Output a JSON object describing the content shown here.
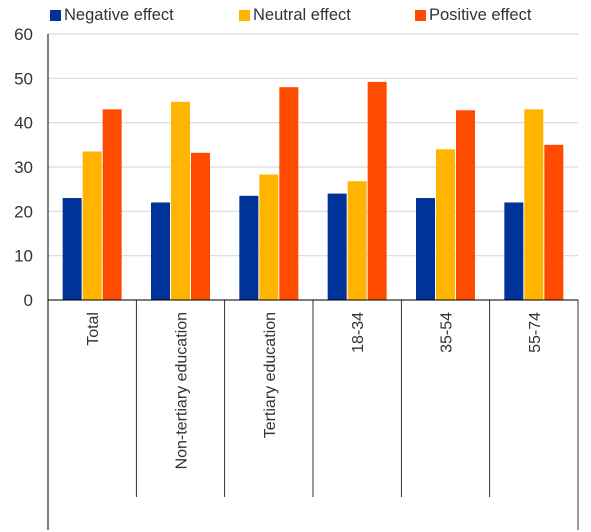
{
  "chart_data": {
    "type": "bar",
    "categories": [
      "Total",
      "Non-tertiary education",
      "Tertiary education",
      "18-34",
      "35-54",
      "55-74"
    ],
    "series": [
      {
        "name": "Negative effect",
        "color": "#003399",
        "values": [
          23,
          22,
          23.5,
          24,
          23,
          22
        ]
      },
      {
        "name": "Neutral effect",
        "color": "#FFB400",
        "values": [
          33.5,
          44.7,
          28.3,
          26.8,
          34,
          43
        ]
      },
      {
        "name": "Positive effect",
        "color": "#FF4B00",
        "values": [
          43,
          33.2,
          48,
          49.2,
          42.8,
          35
        ]
      }
    ],
    "ylim": [
      0,
      60
    ],
    "yticks": [
      0,
      10,
      20,
      30,
      40,
      50,
      60
    ],
    "grid": true,
    "legend_position": "top"
  }
}
